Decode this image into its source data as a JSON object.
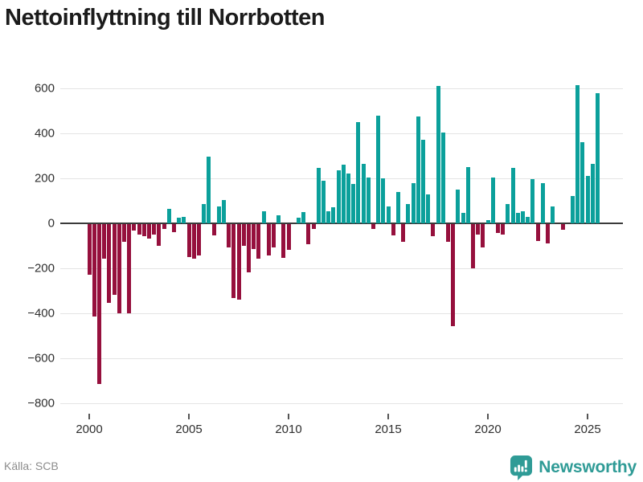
{
  "title": "Nettoinflyttning till Norrbotten",
  "footer": {
    "source_label": "Källa: SCB",
    "brand": "Newsworthy"
  },
  "colors": {
    "positive": "#0ba09b",
    "negative": "#96103d",
    "axis_line": "#3a3a3a",
    "gridline": "#e4e4e4",
    "tick_text": "#2e2e2e",
    "muted_text": "#8c8c8c",
    "brand_teal": "#2f9b96",
    "title_text": "#1b1b1b"
  },
  "chart_data": {
    "type": "bar",
    "title": "Nettoinflyttning till Norrbotten",
    "x_unit": "quarter",
    "start": "2000Q1",
    "end": "2025Q3",
    "values": [
      -225,
      -410,
      -710,
      -155,
      -350,
      -315,
      -395,
      -80,
      -395,
      -30,
      -45,
      -55,
      -65,
      -45,
      -95,
      -20,
      65,
      -35,
      25,
      30,
      -145,
      -155,
      -140,
      85,
      295,
      -50,
      75,
      105,
      -105,
      -330,
      -335,
      -95,
      -215,
      -110,
      -155,
      55,
      -140,
      -105,
      35,
      -150,
      -115,
      0,
      25,
      50,
      -90,
      -20,
      245,
      190,
      55,
      70,
      235,
      260,
      220,
      175,
      450,
      265,
      205,
      -20,
      480,
      200,
      75,
      -50,
      140,
      -80,
      85,
      180,
      475,
      370,
      130,
      -55,
      610,
      405,
      -80,
      -455,
      150,
      45,
      250,
      -195,
      -45,
      -105,
      15,
      205,
      -40,
      -45,
      85,
      245,
      45,
      55,
      30,
      195,
      -75,
      180,
      -85,
      75,
      0,
      -25,
      0,
      120,
      615,
      360,
      210,
      265,
      580
    ],
    "ylim": [
      -800,
      600
    ],
    "yticks": [
      600,
      400,
      200,
      0,
      -200,
      -400,
      -600,
      -800
    ],
    "ytick_labels": [
      "600",
      "400",
      "200",
      "0",
      "−200",
      "−400",
      "−600",
      "−800"
    ],
    "xticks": [
      2000,
      2005,
      2010,
      2015,
      2020,
      2025
    ],
    "xtick_labels": [
      "2000",
      "2005",
      "2010",
      "2015",
      "2020",
      "2025"
    ],
    "grid": "horizontal",
    "legend": "none",
    "positive_color": "#0ba09b",
    "negative_color": "#96103d"
  }
}
